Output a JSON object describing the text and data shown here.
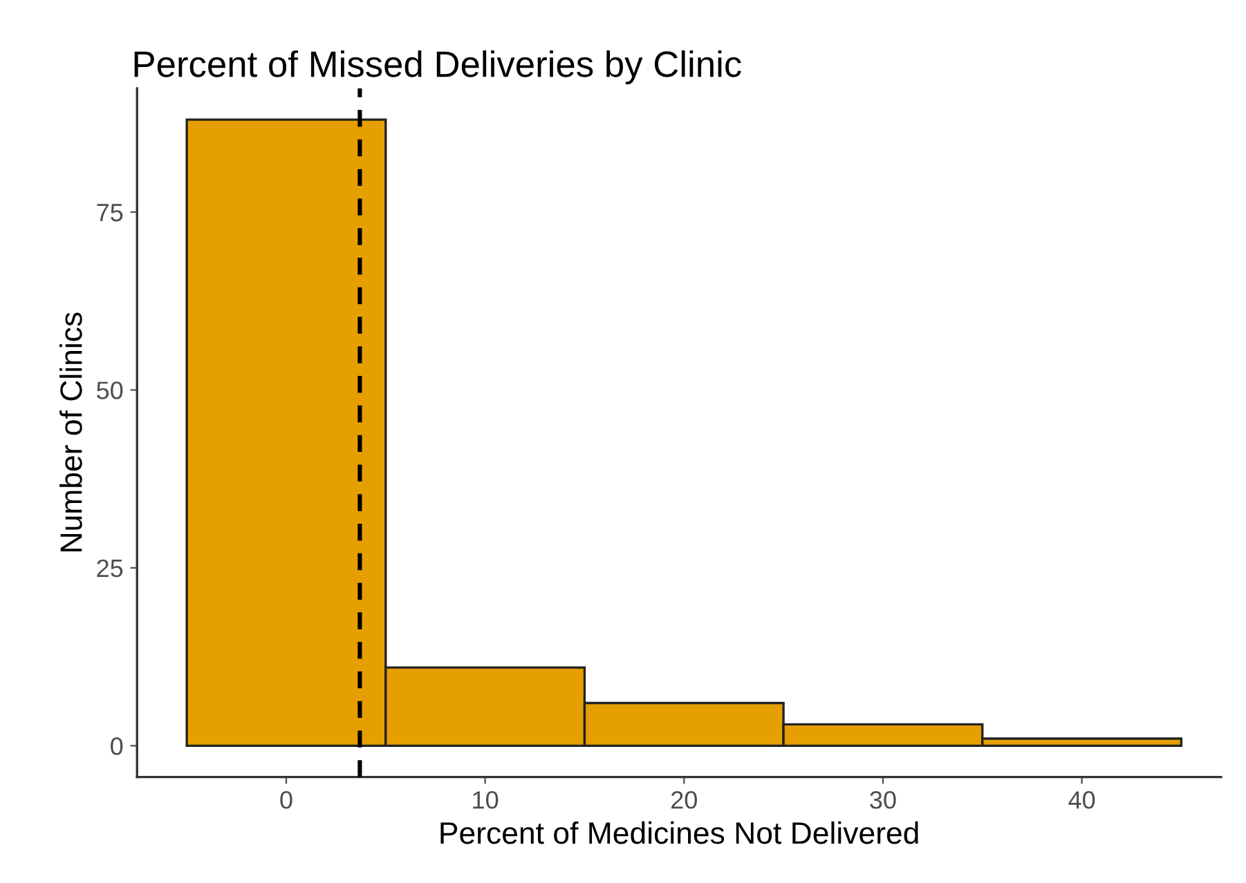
{
  "chart_data": {
    "type": "histogram",
    "title": "Percent of Missed Deliveries by Clinic",
    "xlabel": "Percent of Medicines Not Delivered",
    "ylabel": "Number of Clinics",
    "bins": [
      -5,
      5,
      15,
      25,
      35,
      45
    ],
    "values": [
      88,
      11,
      6,
      3,
      1
    ],
    "color": "#e69f00",
    "xlim": [
      -7.5,
      47
    ],
    "ylim": [
      -4.4,
      92.4
    ],
    "xticks": [
      0,
      10,
      20,
      30,
      40
    ],
    "yticks": [
      0,
      25,
      50,
      75
    ],
    "ref_lines": [
      {
        "axis": "x",
        "value": 3.7,
        "label": null,
        "color": "#000000",
        "line_style": "dashed"
      }
    ],
    "grid": false
  }
}
